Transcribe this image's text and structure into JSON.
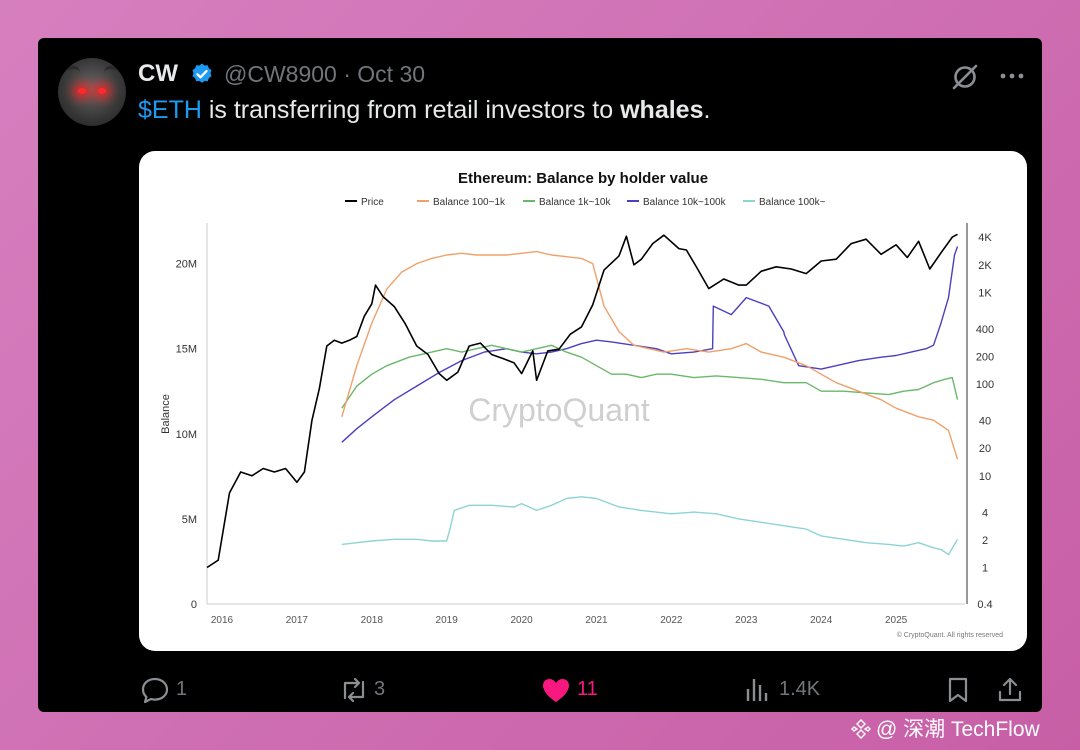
{
  "tweet": {
    "author_name": "CW",
    "handle": "@CW8900",
    "separator": "·",
    "date": "Oct 30",
    "text_cashtag": "$ETH",
    "text_middle": " is transferring from retail investors to ",
    "text_bold": "whales",
    "text_end": ".",
    "icons": {
      "verified": "verified-badge-icon",
      "grok": "grok-icon",
      "more": "more-icon"
    }
  },
  "actions": {
    "reply": {
      "icon": "reply-icon",
      "count": "1"
    },
    "retweet": {
      "icon": "retweet-icon",
      "count": "3"
    },
    "like": {
      "icon": "heart-icon",
      "count": "11"
    },
    "views": {
      "icon": "views-icon",
      "count": "1.4K"
    },
    "bookmark": {
      "icon": "bookmark-icon"
    },
    "share": {
      "icon": "share-icon"
    }
  },
  "watermark": {
    "text": "@ 深潮 TechFlow",
    "icon": "binance-square-icon"
  },
  "chart_data": {
    "type": "line",
    "title": "Ethereum: Balance by holder value",
    "xlabel": "",
    "ylabel": "Balance",
    "ylim": [
      0,
      22500000
    ],
    "y2_scale": "log",
    "y2lim": [
      0.4,
      6000
    ],
    "x_ticks": [
      "2016",
      "2017",
      "2018",
      "2019",
      "2020",
      "2021",
      "2022",
      "2023",
      "2024",
      "2025"
    ],
    "y_ticks": [
      "0",
      "5M",
      "10M",
      "15M",
      "20M"
    ],
    "y2_ticks": [
      "0.4",
      "1",
      "2",
      "4",
      "10",
      "20",
      "40",
      "100",
      "200",
      "400",
      "1K",
      "2K",
      "4K"
    ],
    "watermark": "CryptoQuant",
    "credit": "© CryptoQuant. All rights reserved",
    "legend_position": "top-center",
    "series": [
      {
        "name": "Price",
        "axis": "right",
        "color": "#000000",
        "x": [
          2015.8,
          2015.95,
          2016.1,
          2016.25,
          2016.4,
          2016.55,
          2016.7,
          2016.85,
          2017.0,
          2017.1,
          2017.2,
          2017.3,
          2017.4,
          2017.5,
          2017.6,
          2017.7,
          2017.8,
          2017.9,
          2018.0,
          2018.05,
          2018.15,
          2018.3,
          2018.45,
          2018.6,
          2018.75,
          2018.9,
          2019.0,
          2019.15,
          2019.3,
          2019.45,
          2019.6,
          2019.75,
          2019.9,
          2020.0,
          2020.15,
          2020.2,
          2020.35,
          2020.5,
          2020.65,
          2020.8,
          2020.95,
          2021.1,
          2021.3,
          2021.4,
          2021.5,
          2021.6,
          2021.75,
          2021.9,
          2022.1,
          2022.2,
          2022.35,
          2022.5,
          2022.7,
          2022.9,
          2023.0,
          2023.2,
          2023.4,
          2023.6,
          2023.8,
          2024.0,
          2024.2,
          2024.4,
          2024.6,
          2024.8,
          2025.0,
          2025.15,
          2025.3,
          2025.45,
          2025.6,
          2025.75,
          2025.82
        ],
        "values": [
          1.0,
          1.2,
          6.5,
          11,
          10,
          12,
          11,
          12,
          8.5,
          11,
          40,
          90,
          260,
          300,
          280,
          300,
          330,
          550,
          750,
          1200,
          900,
          700,
          450,
          260,
          210,
          130,
          110,
          135,
          260,
          280,
          210,
          190,
          170,
          130,
          230,
          110,
          230,
          240,
          350,
          420,
          730,
          1750,
          2500,
          4100,
          2000,
          2300,
          3400,
          4200,
          3000,
          2900,
          1800,
          1100,
          1400,
          1200,
          1200,
          1700,
          1900,
          1800,
          1600,
          2200,
          2300,
          3400,
          3800,
          2600,
          3300,
          2400,
          3600,
          1800,
          2700,
          4000,
          4300
        ]
      },
      {
        "name": "Balance 100~1k",
        "axis": "left",
        "color": "#f0a06a",
        "x": [
          2017.6,
          2017.8,
          2018.0,
          2018.2,
          2018.4,
          2018.6,
          2018.8,
          2019.0,
          2019.2,
          2019.4,
          2019.6,
          2019.8,
          2020.0,
          2020.2,
          2020.4,
          2020.6,
          2020.8,
          2020.95,
          2021.1,
          2021.3,
          2021.5,
          2021.7,
          2021.9,
          2022.2,
          2022.5,
          2022.8,
          2023.0,
          2023.2,
          2023.5,
          2023.8,
          2024.0,
          2024.2,
          2024.5,
          2024.8,
          2025.0,
          2025.3,
          2025.5,
          2025.7,
          2025.82
        ],
        "values": [
          11.0,
          14.0,
          16.5,
          18.5,
          19.5,
          20.0,
          20.3,
          20.5,
          20.6,
          20.5,
          20.5,
          20.5,
          20.6,
          20.7,
          20.5,
          20.4,
          20.3,
          20.0,
          17.5,
          16.0,
          15.2,
          15.0,
          14.8,
          15.0,
          14.8,
          15.0,
          15.3,
          14.8,
          14.5,
          14.0,
          13.5,
          13.0,
          12.5,
          12.0,
          11.5,
          11.0,
          10.8,
          10.2,
          8.5
        ]
      },
      {
        "name": "Balance 1k~10k",
        "axis": "left",
        "color": "#6ab86a",
        "x": [
          2017.6,
          2017.8,
          2018.0,
          2018.2,
          2018.5,
          2018.8,
          2019.0,
          2019.2,
          2019.4,
          2019.6,
          2019.8,
          2020.0,
          2020.2,
          2020.4,
          2020.6,
          2020.8,
          2021.0,
          2021.2,
          2021.4,
          2021.6,
          2021.8,
          2022.0,
          2022.3,
          2022.6,
          2022.9,
          2023.2,
          2023.5,
          2023.8,
          2024.0,
          2024.3,
          2024.6,
          2024.9,
          2025.1,
          2025.3,
          2025.5,
          2025.65,
          2025.75,
          2025.82
        ],
        "values": [
          11.5,
          12.8,
          13.5,
          14.0,
          14.5,
          14.8,
          15.0,
          14.8,
          15.0,
          15.2,
          15.0,
          14.8,
          15.0,
          15.2,
          14.8,
          14.5,
          14.0,
          13.5,
          13.5,
          13.3,
          13.5,
          13.5,
          13.3,
          13.4,
          13.3,
          13.2,
          13.0,
          13.0,
          12.5,
          12.5,
          12.4,
          12.3,
          12.5,
          12.6,
          13.0,
          13.2,
          13.3,
          12.0
        ]
      },
      {
        "name": "Balance 10k~100k",
        "axis": "left",
        "color": "#4c3fc0",
        "x": [
          2017.6,
          2017.8,
          2018.0,
          2018.3,
          2018.6,
          2018.9,
          2019.2,
          2019.5,
          2019.8,
          2020.0,
          2020.2,
          2020.4,
          2020.6,
          2020.8,
          2021.0,
          2021.2,
          2021.5,
          2021.8,
          2022.0,
          2022.3,
          2022.55,
          2022.56,
          2022.8,
          2023.0,
          2023.3,
          2023.5,
          2023.51,
          2023.7,
          2024.0,
          2024.2,
          2024.5,
          2024.8,
          2025.0,
          2025.2,
          2025.4,
          2025.5,
          2025.6,
          2025.7,
          2025.78,
          2025.82
        ],
        "values": [
          9.5,
          10.3,
          11.0,
          12.0,
          12.8,
          13.6,
          14.3,
          14.8,
          15.0,
          14.8,
          14.7,
          14.8,
          15.0,
          15.3,
          15.5,
          15.4,
          15.2,
          15.0,
          14.7,
          14.8,
          15.0,
          17.5,
          17.0,
          18.0,
          17.5,
          16.0,
          15.8,
          14.0,
          13.8,
          14.0,
          14.3,
          14.5,
          14.6,
          14.8,
          15.0,
          15.2,
          16.5,
          18.0,
          20.5,
          21.0
        ]
      },
      {
        "name": "Balance 100k~",
        "axis": "left",
        "color": "#8ed4d4",
        "x": [
          2017.6,
          2017.8,
          2018.0,
          2018.3,
          2018.6,
          2018.8,
          2019.0,
          2019.05,
          2019.1,
          2019.3,
          2019.6,
          2019.9,
          2020.0,
          2020.2,
          2020.4,
          2020.6,
          2020.8,
          2021.0,
          2021.3,
          2021.6,
          2022.0,
          2022.3,
          2022.6,
          2022.9,
          2023.2,
          2023.5,
          2023.8,
          2024.0,
          2024.3,
          2024.6,
          2024.9,
          2025.1,
          2025.3,
          2025.5,
          2025.6,
          2025.7,
          2025.82
        ],
        "values": [
          3.5,
          3.6,
          3.7,
          3.8,
          3.8,
          3.7,
          3.7,
          4.5,
          5.5,
          5.8,
          5.8,
          5.7,
          5.9,
          5.5,
          5.8,
          6.2,
          6.3,
          6.2,
          5.7,
          5.5,
          5.3,
          5.4,
          5.3,
          5.0,
          4.8,
          4.6,
          4.4,
          4.0,
          3.8,
          3.6,
          3.5,
          3.4,
          3.6,
          3.3,
          3.2,
          2.9,
          3.8
        ]
      }
    ]
  }
}
